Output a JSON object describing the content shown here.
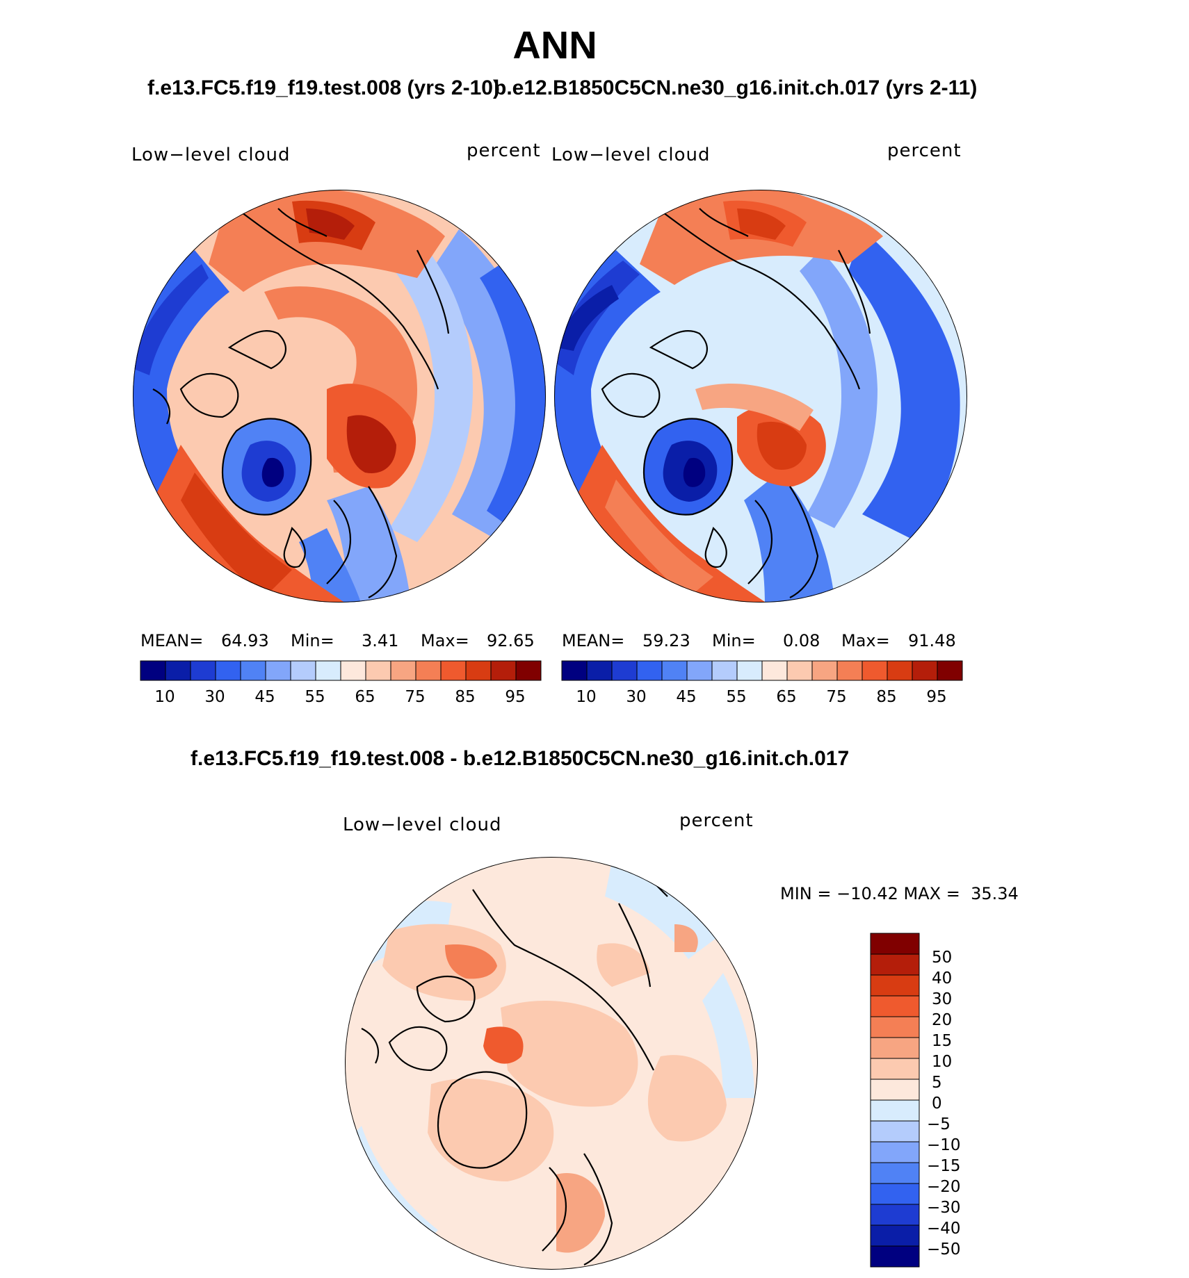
{
  "title": "ANN",
  "subtitle_left": "f.e13.FC5.f19_f19.test.008 (yrs 2-10)",
  "subtitle_right": "b.e12.B1850C5CN.ne30_g16.init.ch.017 (yrs 2-11)",
  "diff_title": "f.e13.FC5.f19_f19.test.008 - b.e12.B1850C5CN.ne30_g16.init.ch.017",
  "panels": [
    {
      "variable": "Low−level cloud",
      "units": "percent",
      "mean_label": "MEAN=",
      "mean": "64.93",
      "min_label": "Min=",
      "min": "3.41",
      "max_label": "Max=",
      "max": "92.65"
    },
    {
      "variable": "Low−level cloud",
      "units": "percent",
      "mean_label": "MEAN=",
      "mean": "59.23",
      "min_label": "Min=",
      "min": "0.08",
      "max_label": "Max=",
      "max": "91.48"
    }
  ],
  "diff_panel": {
    "variable": "Low−level cloud",
    "units": "percent",
    "min_max": "MIN = −10.42 MAX =  35.34"
  },
  "colorbar_main": {
    "tick_labels": [
      "10",
      "30",
      "45",
      "55",
      "65",
      "75",
      "85",
      "95"
    ],
    "colors": [
      "#000080",
      "#0a1ea8",
      "#1e3cd2",
      "#3262f0",
      "#5082f5",
      "#82a6fa",
      "#b4ccfc",
      "#d8ecfd",
      "#fde8dc",
      "#fccab0",
      "#f7a582",
      "#f47f55",
      "#ef5a2e",
      "#d83c12",
      "#b41e0a",
      "#800000"
    ]
  },
  "colorbar_diff": {
    "tick_labels": [
      "50",
      "40",
      "30",
      "20",
      "15",
      "10",
      "5",
      "0",
      "−5",
      "−10",
      "−15",
      "−20",
      "−30",
      "−40",
      "−50"
    ],
    "colors": [
      "#800000",
      "#b41e0a",
      "#d83c12",
      "#ef5a2e",
      "#f47f55",
      "#f7a582",
      "#fccab0",
      "#fde8dc",
      "#d8ecfd",
      "#b4ccfc",
      "#82a6fa",
      "#5082f5",
      "#3262f0",
      "#1e3cd2",
      "#0a1ea8",
      "#000080"
    ]
  }
}
